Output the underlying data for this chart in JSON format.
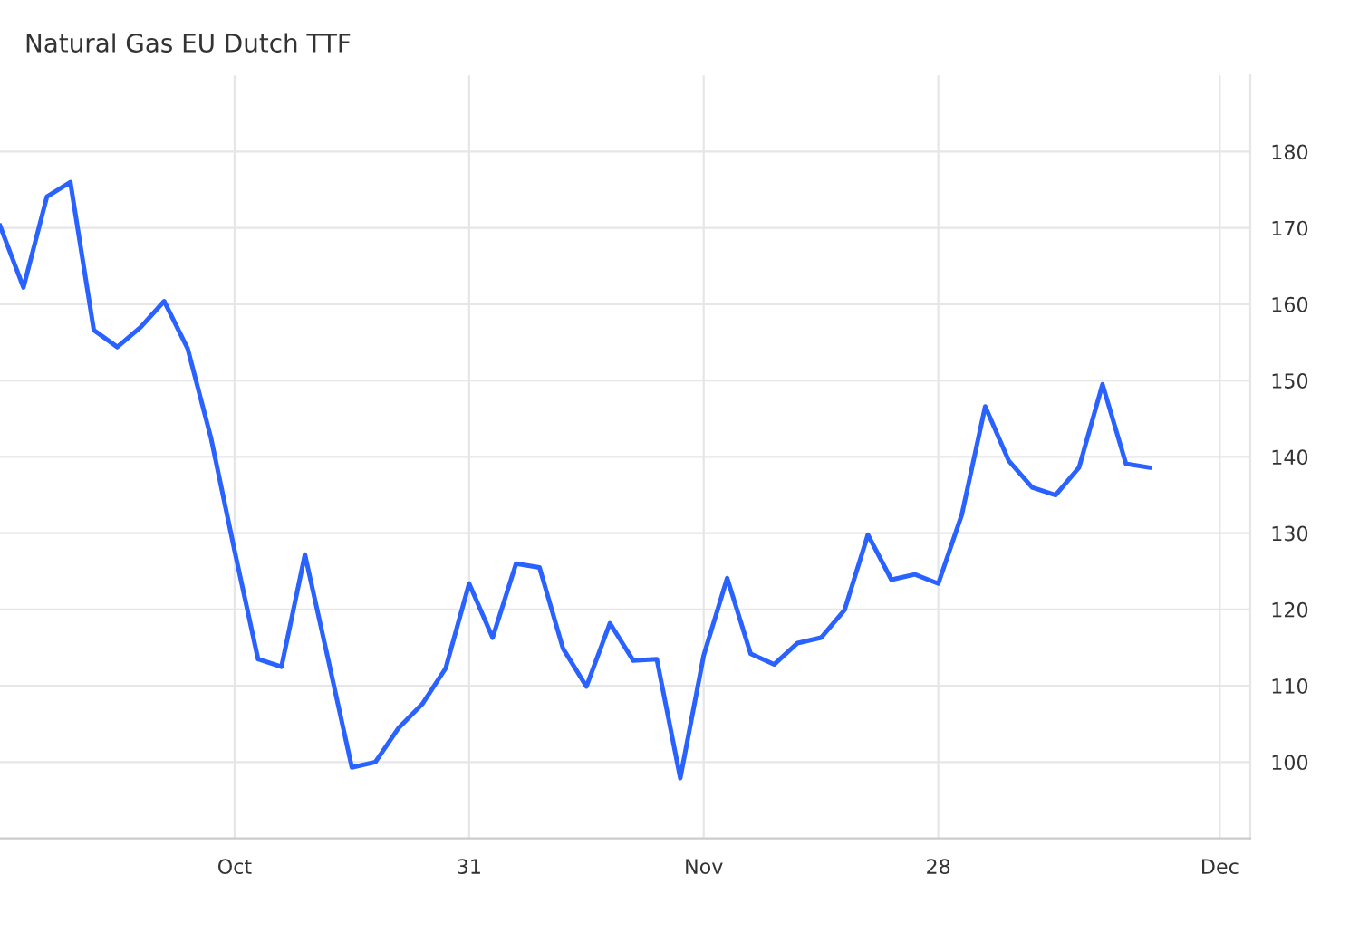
{
  "chart_data": {
    "type": "line",
    "title": "Natural Gas EU Dutch TTF",
    "categories": [
      null,
      null,
      null,
      null,
      null,
      null,
      null,
      null,
      null,
      null,
      "Oct",
      null,
      null,
      null,
      null,
      null,
      null,
      null,
      null,
      null,
      "31",
      null,
      null,
      null,
      null,
      null,
      null,
      null,
      null,
      null,
      "Nov",
      null,
      null,
      null,
      null,
      null,
      null,
      null,
      null,
      null,
      "28",
      null,
      null,
      null,
      null,
      null,
      null,
      null,
      null,
      null,
      null,
      null,
      "Dec",
      null
    ],
    "series": [
      {
        "color": "#2962ff",
        "values": [
          170.3,
          162.2,
          174.1,
          176,
          156.6,
          154.4,
          157,
          160.4,
          154.2,
          142.4,
          127.7,
          113.5,
          112.5,
          127.2,
          113.3,
          99.3,
          100,
          104.5,
          107.6,
          112.3,
          123.4,
          116.3,
          126,
          125.5,
          114.9,
          109.9,
          118.2,
          113.3,
          113.5,
          97.9,
          114,
          124.1,
          114.2,
          112.8,
          115.6,
          116.3,
          119.9,
          129.8,
          123.9,
          124.6,
          123.4,
          132.4,
          146.6,
          139.5,
          136,
          135,
          138.6,
          149.5,
          139.1,
          138.6,
          null,
          null,
          null,
          null
        ]
      }
    ],
    "ylim": [
      90,
      190
    ],
    "yticks": [
      100,
      110,
      120,
      130,
      140,
      150,
      160,
      170,
      180
    ],
    "grid": true,
    "marker": "none",
    "line_style": "solid"
  }
}
